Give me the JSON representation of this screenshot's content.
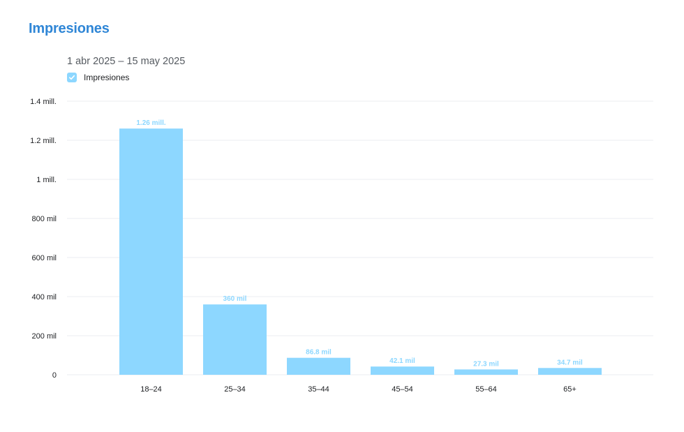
{
  "header": {
    "title": "Impresiones",
    "date_range": "1 abr 2025 – 15 may 2025"
  },
  "legend": {
    "label": "Impresiones",
    "checked": true,
    "checkbox_color": "#8dd7ff",
    "check_icon": "check-icon"
  },
  "colors": {
    "bar": "#8dd7ff",
    "bar_label": "#8dd7ff",
    "grid": "#ebedf0",
    "title": "#2f86d6"
  },
  "chart_data": {
    "type": "bar",
    "categories": [
      "18–24",
      "25–34",
      "35–44",
      "45–54",
      "55–64",
      "65+"
    ],
    "series": [
      {
        "name": "Impresiones",
        "values": [
          1260000,
          360000,
          86800,
          42100,
          27300,
          34700
        ],
        "data_labels": [
          "1.26 mill.",
          "360 mil",
          "86.8 mil",
          "42.1 mil",
          "27.3 mil",
          "34.7 mil"
        ]
      }
    ],
    "y_ticks": [
      0,
      200000,
      400000,
      600000,
      800000,
      1000000,
      1200000,
      1400000
    ],
    "y_tick_labels": [
      "0",
      "200 mil",
      "400 mil",
      "600 mil",
      "800 mil",
      "1 mill.",
      "1.2 mill.",
      "1.4 mill."
    ],
    "ylim": [
      0,
      1400000
    ],
    "grid": true,
    "legend_position": "top-left",
    "title": "Impresiones",
    "subtitle": "1 abr 2025 – 15 may 2025",
    "xlabel": "",
    "ylabel": ""
  }
}
